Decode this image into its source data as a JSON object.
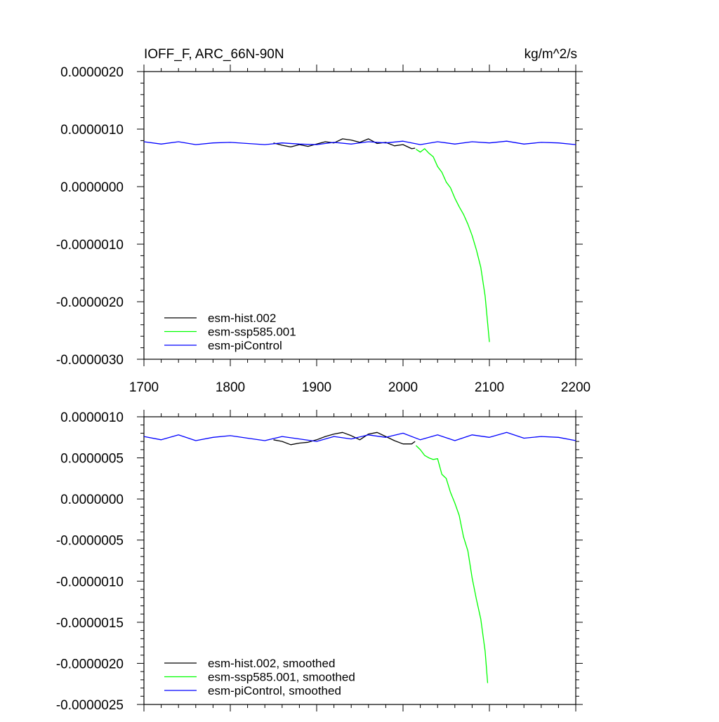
{
  "chart_data": [
    {
      "type": "line",
      "title": "IOFF_F, ARC_66N-90N",
      "units": "kg/m^2/s",
      "xlim": [
        1700,
        2200
      ],
      "ylim": [
        -3e-06,
        2e-06
      ],
      "x_ticks": [
        {
          "value": 1700,
          "label": "1700"
        },
        {
          "value": 1800,
          "label": "1800"
        },
        {
          "value": 1900,
          "label": "1900"
        },
        {
          "value": 2000,
          "label": "2000"
        },
        {
          "value": 2100,
          "label": "2100"
        },
        {
          "value": 2200,
          "label": "2200"
        }
      ],
      "y_ticks": [
        {
          "value": 2e-06,
          "label": "0.0000020"
        },
        {
          "value": 1e-06,
          "label": "0.0000010"
        },
        {
          "value": 0.0,
          "label": "0.0000000"
        },
        {
          "value": -1e-06,
          "label": "-0.0000010"
        },
        {
          "value": -2e-06,
          "label": "-0.0000020"
        },
        {
          "value": -3e-06,
          "label": "-0.0000030"
        }
      ],
      "legend_position": "bottom-left",
      "series": [
        {
          "name": "esm-hist.002",
          "color": "#000000",
          "x": [
            1850,
            1860,
            1870,
            1880,
            1890,
            1900,
            1910,
            1920,
            1930,
            1940,
            1950,
            1960,
            1970,
            1980,
            1990,
            2000,
            2010,
            2014
          ],
          "y": [
            7.6e-07,
            7.2e-07,
            6.9e-07,
            7.3e-07,
            7e-07,
            7.4e-07,
            7.8e-07,
            7.6e-07,
            8.3e-07,
            8.1e-07,
            7.7e-07,
            8.3e-07,
            7.5e-07,
            7.7e-07,
            7.1e-07,
            7.3e-07,
            6.6e-07,
            6.7e-07
          ]
        },
        {
          "name": "esm-ssp585.001",
          "color": "#00ff00",
          "x": [
            2015,
            2020,
            2025,
            2030,
            2035,
            2040,
            2045,
            2050,
            2055,
            2060,
            2065,
            2070,
            2075,
            2080,
            2085,
            2090,
            2095,
            2100
          ],
          "y": [
            6.5e-07,
            6e-07,
            6.6e-07,
            5.8e-07,
            5.2e-07,
            3.5e-07,
            2.5e-07,
            8e-08,
            -2e-08,
            -2e-07,
            -3.5e-07,
            -4.8e-07,
            -6.5e-07,
            -8.5e-07,
            -1.1e-06,
            -1.4e-06,
            -1.9e-06,
            -2.7e-06
          ]
        },
        {
          "name": "esm-piControl",
          "color": "#0000ff",
          "x": [
            1700,
            1720,
            1740,
            1760,
            1780,
            1800,
            1820,
            1840,
            1860,
            1880,
            1900,
            1920,
            1940,
            1960,
            1980,
            2000,
            2020,
            2040,
            2060,
            2080,
            2100,
            2120,
            2140,
            2160,
            2180,
            2200
          ],
          "y": [
            7.8e-07,
            7.4e-07,
            7.8e-07,
            7.3e-07,
            7.6e-07,
            7.7e-07,
            7.5e-07,
            7.3e-07,
            7.6e-07,
            7.4e-07,
            7.3e-07,
            7.7e-07,
            7.4e-07,
            7.8e-07,
            7.6e-07,
            7.9e-07,
            7.3e-07,
            7.8e-07,
            7.4e-07,
            7.8e-07,
            7.6e-07,
            7.9e-07,
            7.4e-07,
            7.7e-07,
            7.6e-07,
            7.3e-07
          ]
        }
      ]
    },
    {
      "type": "line",
      "xlim": [
        1700,
        2200
      ],
      "ylim": [
        -2.5e-06,
        1e-06
      ],
      "y_ticks": [
        {
          "value": 1e-06,
          "label": "0.0000010"
        },
        {
          "value": 5e-07,
          "label": "0.0000005"
        },
        {
          "value": 0.0,
          "label": "0.0000000"
        },
        {
          "value": -5e-07,
          "label": "-0.0000005"
        },
        {
          "value": -1e-06,
          "label": "-0.0000010"
        },
        {
          "value": -1.5e-06,
          "label": "-0.0000015"
        },
        {
          "value": -2e-06,
          "label": "-0.0000020"
        },
        {
          "value": -2.5e-06,
          "label": "-0.0000025"
        }
      ],
      "legend_position": "bottom-left",
      "series": [
        {
          "name": "esm-hist.002, smoothed",
          "color": "#000000",
          "x": [
            1850,
            1860,
            1870,
            1880,
            1890,
            1900,
            1910,
            1920,
            1930,
            1940,
            1950,
            1960,
            1970,
            1980,
            1990,
            2000,
            2010,
            2014
          ],
          "y": [
            7.2e-07,
            7e-07,
            6.6e-07,
            6.8e-07,
            6.9e-07,
            7.2e-07,
            7.6e-07,
            7.9e-07,
            8.1e-07,
            7.7e-07,
            7.2e-07,
            7.9e-07,
            8.1e-07,
            7.6e-07,
            7.1e-07,
            6.7e-07,
            6.7e-07,
            7e-07
          ]
        },
        {
          "name": "esm-ssp585.001, smoothed",
          "color": "#00ff00",
          "x": [
            2015,
            2020,
            2025,
            2030,
            2035,
            2040,
            2045,
            2050,
            2055,
            2060,
            2065,
            2070,
            2075,
            2080,
            2085,
            2090,
            2095,
            2098
          ],
          "y": [
            6.5e-07,
            6e-07,
            5.3e-07,
            5e-07,
            4.8e-07,
            4.9e-07,
            3e-07,
            2.5e-07,
            8e-08,
            -5e-08,
            -2e-07,
            -4.6e-07,
            -6.3e-07,
            -9.6e-07,
            -1.22e-06,
            -1.46e-06,
            -1.85e-06,
            -2.24e-06
          ]
        },
        {
          "name": "esm-piControl, smoothed",
          "color": "#0000ff",
          "x": [
            1700,
            1720,
            1740,
            1760,
            1780,
            1800,
            1820,
            1840,
            1860,
            1880,
            1900,
            1920,
            1940,
            1960,
            1980,
            2000,
            2020,
            2040,
            2060,
            2080,
            2100,
            2120,
            2140,
            2160,
            2180,
            2200
          ],
          "y": [
            7.6e-07,
            7.2e-07,
            7.8e-07,
            7.1e-07,
            7.5e-07,
            7.7e-07,
            7.4e-07,
            7.1e-07,
            7.6e-07,
            7.3e-07,
            7e-07,
            7.6e-07,
            7.3e-07,
            7.8e-07,
            7.5e-07,
            8e-07,
            7.2e-07,
            7.8e-07,
            7.1e-07,
            7.8e-07,
            7.5e-07,
            8.1e-07,
            7.4e-07,
            7.6e-07,
            7.5e-07,
            7.1e-07
          ]
        }
      ]
    }
  ]
}
